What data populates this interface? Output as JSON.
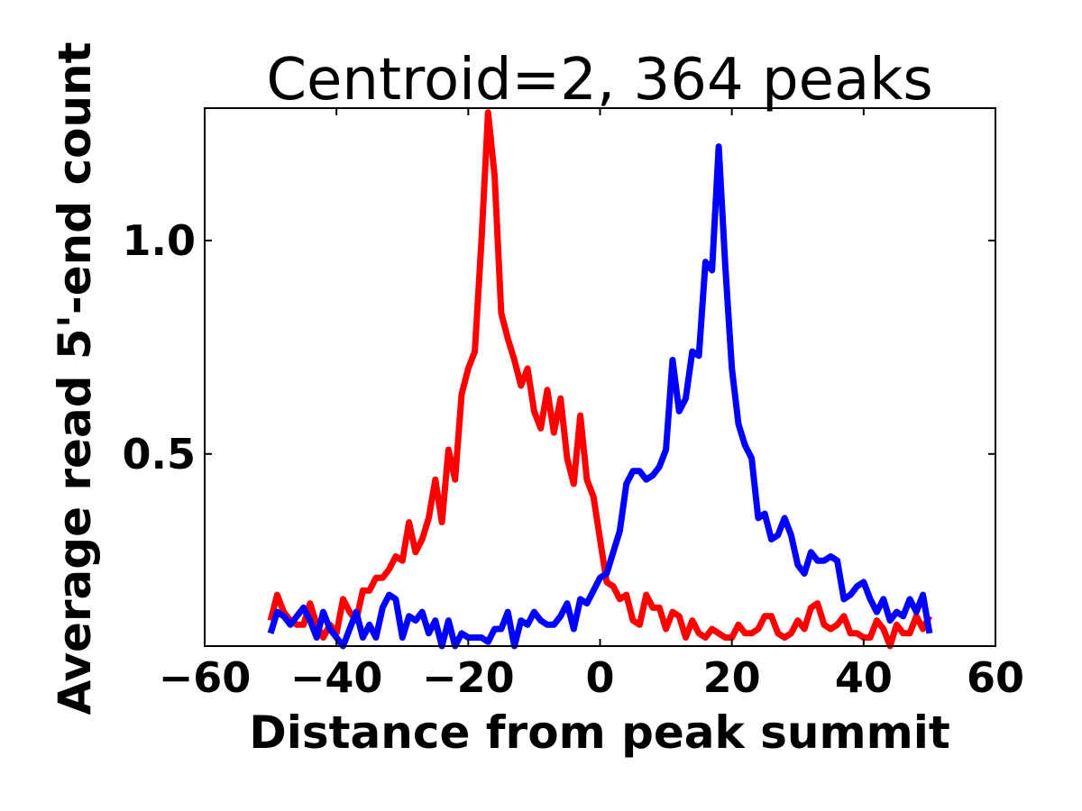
{
  "chart_data": {
    "type": "line",
    "title": "Centroid=2, 364 peaks",
    "xlabel": "Distance from peak summit",
    "ylabel": "Average read 5'-end count",
    "xlim": [
      -60,
      60
    ],
    "ylim": [
      0.05,
      1.31
    ],
    "xticks": [
      -60,
      -40,
      -20,
      0,
      20,
      40,
      60
    ],
    "xtick_labels": [
      "−60",
      "−40",
      "−20",
      "0",
      "20",
      "40",
      "60"
    ],
    "yticks": [
      0.5,
      1.0
    ],
    "ytick_labels": [
      "0.5",
      "1.0"
    ],
    "grid": false,
    "legend": "none",
    "x": [
      -50,
      -49,
      -48,
      -47,
      -46,
      -45,
      -44,
      -43,
      -42,
      -41,
      -40,
      -39,
      -38,
      -37,
      -36,
      -35,
      -34,
      -33,
      -32,
      -31,
      -30,
      -29,
      -28,
      -27,
      -26,
      -25,
      -24,
      -23,
      -22,
      -21,
      -20,
      -19,
      -18,
      -17,
      -16,
      -15,
      -14,
      -13,
      -12,
      -11,
      -10,
      -9,
      -8,
      -7,
      -6,
      -5,
      -4,
      -3,
      -2,
      -1,
      0,
      1,
      2,
      3,
      4,
      5,
      6,
      7,
      8,
      9,
      10,
      11,
      12,
      13,
      14,
      15,
      16,
      17,
      18,
      19,
      20,
      21,
      22,
      23,
      24,
      25,
      26,
      27,
      28,
      29,
      30,
      31,
      32,
      33,
      34,
      35,
      36,
      37,
      38,
      39,
      40,
      41,
      42,
      43,
      44,
      45,
      46,
      47,
      48,
      49,
      50
    ],
    "series": [
      {
        "color": "#ff0000",
        "values": [
          0.11,
          0.17,
          0.13,
          0.11,
          0.1,
          0.1,
          0.15,
          0.1,
          0.07,
          0.1,
          0.08,
          0.16,
          0.13,
          0.11,
          0.18,
          0.18,
          0.21,
          0.21,
          0.23,
          0.26,
          0.25,
          0.34,
          0.27,
          0.3,
          0.35,
          0.44,
          0.34,
          0.51,
          0.44,
          0.64,
          0.7,
          0.74,
          1.0,
          1.3,
          1.15,
          0.83,
          0.77,
          0.72,
          0.66,
          0.7,
          0.6,
          0.56,
          0.65,
          0.55,
          0.63,
          0.49,
          0.43,
          0.59,
          0.44,
          0.4,
          0.3,
          0.2,
          0.19,
          0.16,
          0.17,
          0.11,
          0.1,
          0.17,
          0.14,
          0.14,
          0.09,
          0.13,
          0.12,
          0.07,
          0.11,
          0.08,
          0.07,
          0.09,
          0.08,
          0.07,
          0.07,
          0.1,
          0.08,
          0.08,
          0.09,
          0.12,
          0.12,
          0.08,
          0.07,
          0.08,
          0.11,
          0.09,
          0.14,
          0.15,
          0.1,
          0.09,
          0.1,
          0.12,
          0.08,
          0.08,
          0.07,
          0.07,
          0.11,
          0.09,
          0.05,
          0.1,
          0.08,
          0.08,
          0.12,
          0.09,
          0.12
        ]
      },
      {
        "color": "#0000ff",
        "values": [
          0.08,
          0.13,
          0.12,
          0.1,
          0.12,
          0.14,
          0.11,
          0.07,
          0.13,
          0.09,
          0.07,
          0.05,
          0.09,
          0.13,
          0.07,
          0.1,
          0.07,
          0.14,
          0.17,
          0.16,
          0.07,
          0.12,
          0.11,
          0.13,
          0.08,
          0.11,
          0.05,
          0.11,
          0.05,
          0.08,
          0.07,
          0.07,
          0.07,
          0.06,
          0.09,
          0.09,
          0.13,
          0.05,
          0.11,
          0.1,
          0.13,
          0.11,
          0.1,
          0.1,
          0.12,
          0.15,
          0.09,
          0.16,
          0.15,
          0.18,
          0.21,
          0.22,
          0.27,
          0.32,
          0.43,
          0.46,
          0.46,
          0.44,
          0.45,
          0.47,
          0.51,
          0.72,
          0.6,
          0.63,
          0.74,
          0.73,
          0.95,
          0.93,
          1.22,
          0.94,
          0.7,
          0.57,
          0.52,
          0.49,
          0.35,
          0.36,
          0.3,
          0.31,
          0.35,
          0.31,
          0.24,
          0.22,
          0.27,
          0.25,
          0.25,
          0.26,
          0.25,
          0.16,
          0.17,
          0.19,
          0.2,
          0.16,
          0.13,
          0.16,
          0.11,
          0.13,
          0.12,
          0.16,
          0.13,
          0.17,
          0.08
        ]
      }
    ]
  }
}
